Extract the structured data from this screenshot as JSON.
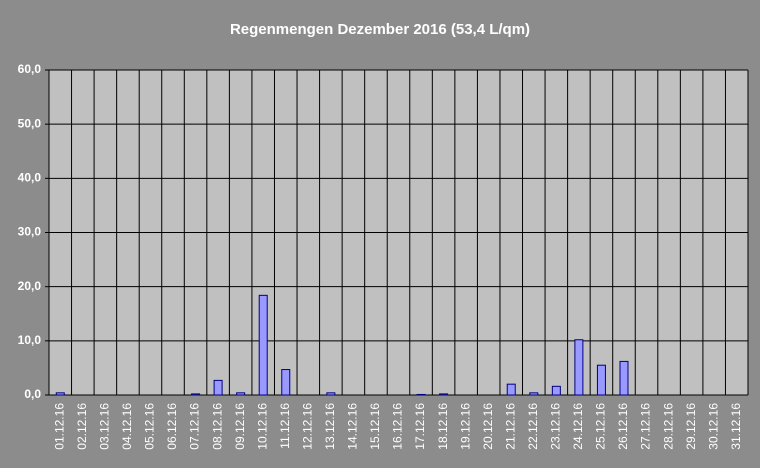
{
  "chart_data": {
    "type": "bar",
    "title": "Regenmengen Dezember 2016 (53,4 L/qm)",
    "categories": [
      "01.12.16",
      "02.12.16",
      "03.12.16",
      "04.12.16",
      "05.12.16",
      "06.12.16",
      "07.12.16",
      "08.12.16",
      "09.12.16",
      "10.12.16",
      "11.12.16",
      "12.12.16",
      "13.12.16",
      "14.12.16",
      "15.12.16",
      "16.12.16",
      "17.12.16",
      "18.12.16",
      "19.12.16",
      "20.12.16",
      "21.12.16",
      "22.12.16",
      "23.12.16",
      "24.12.16",
      "25.12.16",
      "26.12.16",
      "27.12.16",
      "28.12.16",
      "29.12.16",
      "30.12.16",
      "31.12.16"
    ],
    "values": [
      0.4,
      0,
      0,
      0,
      0,
      0,
      0.2,
      2.7,
      0.4,
      18.4,
      4.7,
      0,
      0.4,
      0,
      0,
      0,
      0.1,
      0.2,
      0,
      0,
      2.0,
      0.4,
      1.6,
      10.2,
      5.5,
      6.2,
      0,
      0,
      0,
      0,
      0
    ],
    "color": "#9999ff",
    "ylim": [
      0,
      60
    ],
    "yticks": [
      {
        "value": 0,
        "label": "0,0"
      },
      {
        "value": 10,
        "label": "10,0"
      },
      {
        "value": 20,
        "label": "20,0"
      },
      {
        "value": 30,
        "label": "30,0"
      },
      {
        "value": 40,
        "label": "40,0"
      },
      {
        "value": 50,
        "label": "50,0"
      },
      {
        "value": 60,
        "label": "60,0"
      }
    ],
    "grid": true
  }
}
